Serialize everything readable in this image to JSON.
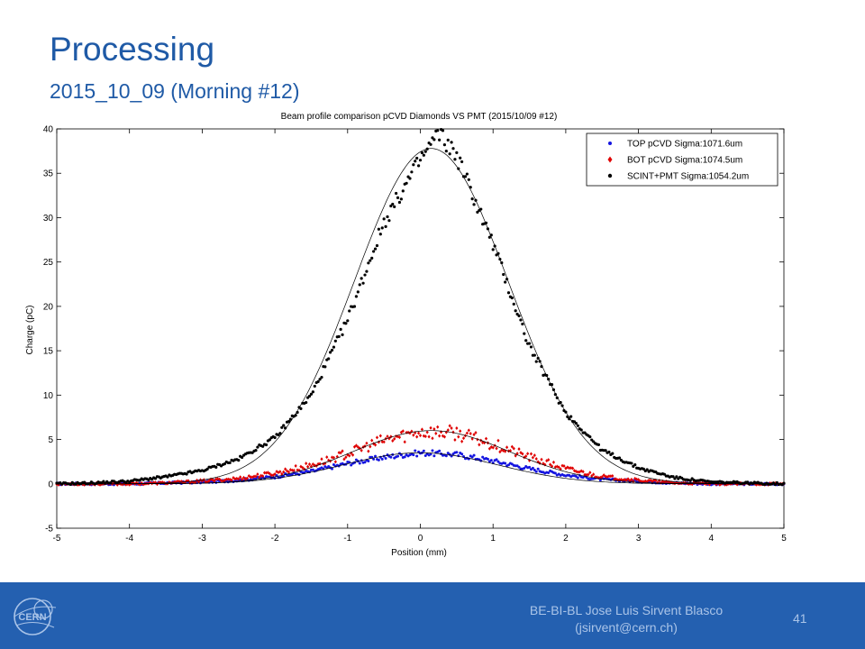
{
  "slide": {
    "title": "Processing",
    "subtitle": "2015_10_09 (Morning #12)",
    "footer_line1": "BE-BI-BL Jose Luis Sirvent Blasco",
    "footer_line2": "(jsirvent@cern.ch)",
    "page_number": "41",
    "logo_text": "CERN",
    "footer_color": "#2460b0"
  },
  "chart_data": {
    "type": "scatter",
    "title": "Beam profile comparison pCVD Diamonds VS PMT (2015/10/09 #12)",
    "xlabel": "Position (mm)",
    "ylabel": "Charge (pC)",
    "xlim": [
      -5,
      5
    ],
    "ylim": [
      -5,
      40
    ],
    "xticks": [
      -5,
      -4,
      -3,
      -2,
      -1,
      0,
      1,
      2,
      3,
      4,
      5
    ],
    "yticks": [
      -5,
      0,
      5,
      10,
      15,
      20,
      25,
      30,
      35,
      40
    ],
    "grid": false,
    "legend_position": "top-right",
    "series": [
      {
        "name": "TOP pCVD Sigma:1071.6um",
        "color": "#1515e0",
        "marker": "point",
        "x": [
          -5.0,
          -4.5,
          -4.0,
          -3.5,
          -3.0,
          -2.5,
          -2.0,
          -1.5,
          -1.0,
          -0.5,
          0.0,
          0.5,
          1.0,
          1.5,
          2.0,
          2.5,
          3.0,
          3.5,
          4.0,
          4.5,
          5.0
        ],
        "y": [
          0.0,
          0.0,
          0.0,
          0.1,
          0.2,
          0.4,
          0.8,
          1.4,
          2.3,
          3.0,
          3.5,
          3.3,
          2.6,
          1.7,
          1.0,
          0.5,
          0.3,
          0.1,
          0.0,
          0.0,
          0.0
        ]
      },
      {
        "name": "BOT pCVD Sigma:1074.5um",
        "color": "#e00000",
        "marker": "diamond",
        "x": [
          -5.0,
          -4.5,
          -4.0,
          -3.5,
          -3.0,
          -2.5,
          -2.0,
          -1.5,
          -1.0,
          -0.5,
          0.0,
          0.5,
          1.0,
          1.5,
          2.0,
          2.5,
          3.0,
          3.5,
          4.0,
          4.5,
          5.0
        ],
        "y": [
          0.0,
          0.0,
          0.0,
          0.1,
          0.3,
          0.6,
          1.2,
          2.1,
          3.4,
          4.9,
          5.9,
          5.7,
          4.5,
          3.0,
          1.7,
          0.8,
          0.4,
          0.1,
          0.0,
          0.0,
          0.0
        ]
      },
      {
        "name": "SCINT+PMT Sigma:1054.2um",
        "color": "#000000",
        "marker": "dot",
        "x": [
          -5.0,
          -4.5,
          -4.0,
          -3.5,
          -3.0,
          -2.5,
          -2.0,
          -1.5,
          -1.0,
          -0.5,
          0.0,
          0.25,
          0.5,
          1.0,
          1.5,
          2.0,
          2.5,
          3.0,
          3.5,
          4.0,
          4.5,
          5.0
        ],
        "y": [
          0.0,
          0.1,
          0.3,
          0.8,
          1.5,
          2.8,
          5.2,
          10.0,
          18.5,
          29.5,
          36.5,
          39.5,
          37.0,
          27.0,
          15.5,
          8.0,
          3.8,
          1.8,
          0.7,
          0.2,
          0.1,
          0.0
        ]
      }
    ],
    "fit_curves": [
      {
        "series": "TOP pCVD Sigma:1071.6um",
        "amplitude": 3.5,
        "mean": 0.0,
        "sigma": 1.0716
      },
      {
        "series": "BOT pCVD Sigma:1074.5um",
        "amplitude": 6.0,
        "mean": 0.15,
        "sigma": 1.0745
      },
      {
        "series": "SCINT+PMT Sigma:1054.2um",
        "amplitude": 37.8,
        "mean": 0.15,
        "sigma": 1.0542
      }
    ]
  }
}
